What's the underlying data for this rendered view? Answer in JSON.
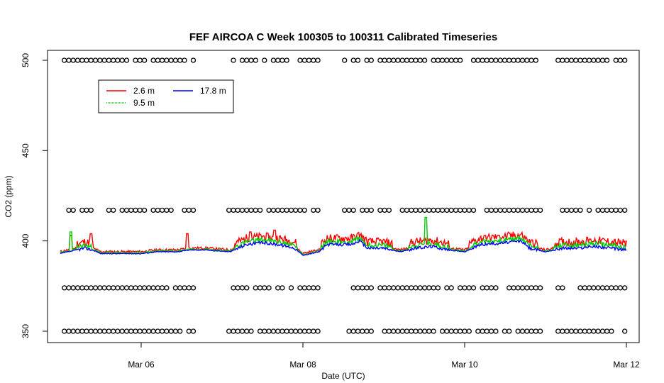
{
  "chart_data": {
    "type": "line",
    "title": "FEF AIRCOA C  Week 100305 to 100311  Calibrated Timeseries",
    "xlabel": "Date (UTC)",
    "ylabel": "CO2 (ppm)",
    "x_range_days": [
      "Mar 05 00:00",
      "Mar 12 06:00"
    ],
    "x_ticks": [
      {
        "label": "Mar 06",
        "day": 6
      },
      {
        "label": "Mar 08",
        "day": 8
      },
      {
        "label": "Mar 10",
        "day": 10
      },
      {
        "label": "Mar 12",
        "day": 12
      }
    ],
    "ylim": [
      345,
      505
    ],
    "y_ticks": [
      350,
      400,
      450,
      500
    ],
    "grid": false,
    "legend_position": "top-left",
    "series": [
      {
        "name": "2.6 m",
        "color": "#ff0000",
        "style": "solid"
      },
      {
        "name": "9.5 m",
        "color": "#00cc00",
        "style": "dotted"
      },
      {
        "name": "17.8 m",
        "color": "#0000ff",
        "style": "solid"
      }
    ],
    "series_data": {
      "base": [
        [
          5.0,
          393
        ],
        [
          5.1,
          394
        ],
        [
          5.2,
          395
        ],
        [
          5.3,
          396
        ],
        [
          5.4,
          395
        ],
        [
          5.5,
          393
        ],
        [
          5.7,
          393
        ],
        [
          6.0,
          393
        ],
        [
          6.2,
          394
        ],
        [
          6.45,
          394
        ],
        [
          6.6,
          395
        ],
        [
          6.8,
          395
        ],
        [
          7.1,
          394
        ],
        [
          7.3,
          398
        ],
        [
          7.5,
          399
        ],
        [
          7.7,
          398
        ],
        [
          7.9,
          396
        ],
        [
          8.0,
          392
        ],
        [
          8.2,
          394
        ],
        [
          8.3,
          398
        ],
        [
          8.6,
          398
        ],
        [
          8.7,
          400
        ],
        [
          8.8,
          396
        ],
        [
          9.0,
          396
        ],
        [
          9.2,
          394
        ],
        [
          9.4,
          396
        ],
        [
          9.6,
          397
        ],
        [
          9.8,
          395
        ],
        [
          10.0,
          394
        ],
        [
          10.2,
          398
        ],
        [
          10.5,
          399
        ],
        [
          10.7,
          400
        ],
        [
          10.8,
          396
        ],
        [
          11.0,
          394
        ],
        [
          11.2,
          396
        ],
        [
          11.4,
          396
        ],
        [
          11.6,
          397
        ],
        [
          11.8,
          396
        ],
        [
          12.0,
          395
        ]
      ],
      "offset_9_5m": 1.5,
      "offset_2_6m": 3.5,
      "spikes": [
        {
          "day": 5.13,
          "series": "9.5 m",
          "value": 405
        },
        {
          "day": 5.13,
          "series": "2.6 m",
          "value": 403
        },
        {
          "day": 5.38,
          "series": "2.6 m",
          "value": 404
        },
        {
          "day": 6.57,
          "series": "2.6 m",
          "value": 404
        },
        {
          "day": 7.35,
          "series": "2.6 m",
          "value": 405
        },
        {
          "day": 7.65,
          "series": "2.6 m",
          "value": 406
        },
        {
          "day": 9.52,
          "series": "9.5 m",
          "value": 413
        },
        {
          "day": 10.25,
          "series": "2.6 m",
          "value": 403
        },
        {
          "day": 10.42,
          "series": "2.6 m",
          "value": 403
        },
        {
          "day": 11.55,
          "series": "2.6 m",
          "value": 401
        }
      ]
    },
    "reference_markers": {
      "description_levels_ppm": [
        500,
        417,
        374,
        350
      ],
      "gaps_days": [
        [
          6.65,
          7.05
        ],
        [
          8.2,
          8.5
        ],
        [
          10.95,
          11.15
        ]
      ]
    }
  }
}
